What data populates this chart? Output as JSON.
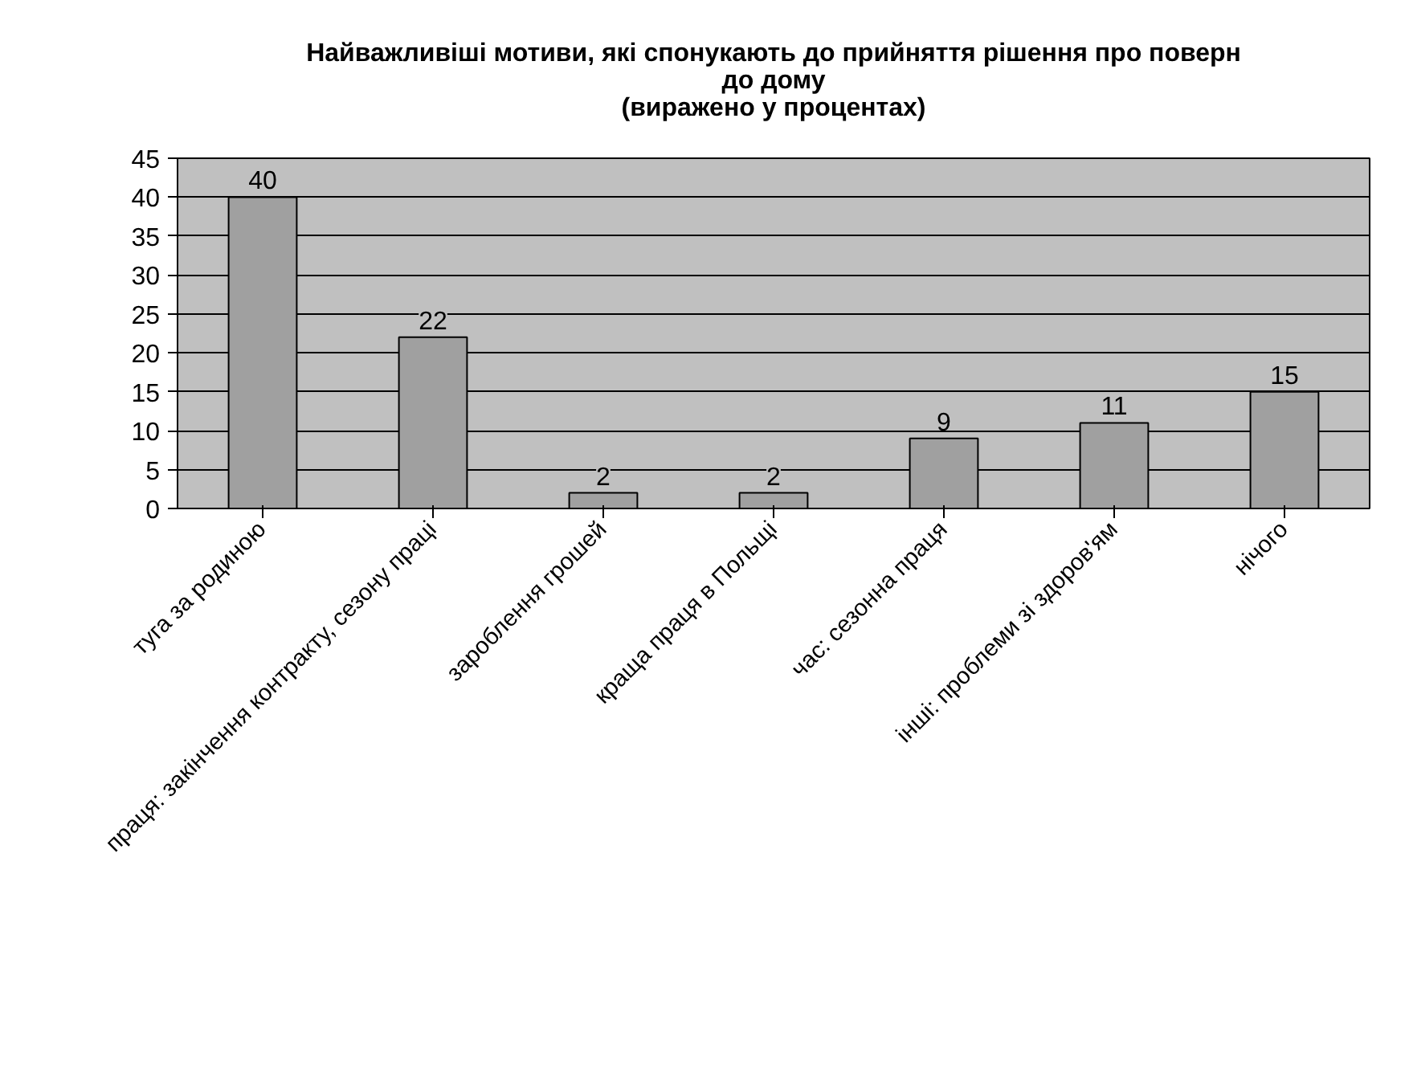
{
  "chart_data": {
    "type": "bar",
    "title": "Найважливіші мотиви, які спонукають до прийняття рішення про поверн\nдо дому",
    "subtitle": "(виражено у процентах)",
    "categories": [
      "туга за родиною",
      "праця: закінчення контракту, сезону праці",
      "зароблення грошей",
      "краща праця в Польщі",
      "час: сезонна праця",
      "інші: проблеми зі здоров'ям",
      "нічого"
    ],
    "values": [
      40,
      22,
      2,
      2,
      9,
      11,
      15
    ],
    "color": "#a0a0a0",
    "data_labels": true,
    "ylim": [
      0,
      45
    ],
    "yticks": [
      0,
      5,
      10,
      15,
      20,
      25,
      30,
      35,
      40,
      45
    ],
    "grid": "y"
  }
}
